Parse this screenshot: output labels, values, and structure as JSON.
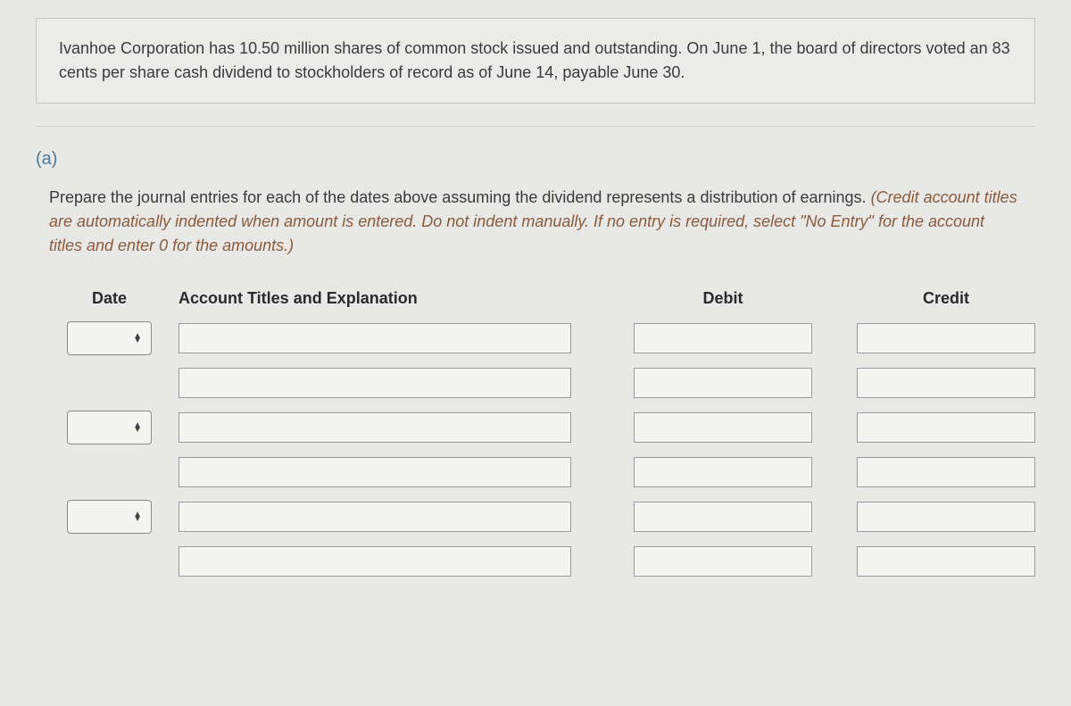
{
  "problem": {
    "text": "Ivanhoe Corporation has 10.50 million shares of common stock issued and outstanding. On June 1, the board of directors voted an 83 cents per share cash dividend to stockholders of record as of June 14, payable June 30."
  },
  "part": {
    "label": "(a)"
  },
  "instructions": {
    "main": "Prepare the journal entries for each of the dates above assuming the dividend represents a distribution of earnings. ",
    "note": "(Credit account titles are automatically indented when amount is entered. Do not indent manually. If no entry is required, select \"No Entry\" for the account titles and enter 0 for the amounts.)"
  },
  "table": {
    "headers": {
      "date": "Date",
      "account": "Account Titles and Explanation",
      "debit": "Debit",
      "credit": "Credit"
    },
    "entries": [
      {
        "date": "",
        "rows": [
          {
            "account": "",
            "debit": "",
            "credit": ""
          },
          {
            "account": "",
            "debit": "",
            "credit": ""
          }
        ]
      },
      {
        "date": "",
        "rows": [
          {
            "account": "",
            "debit": "",
            "credit": ""
          },
          {
            "account": "",
            "debit": "",
            "credit": ""
          }
        ]
      },
      {
        "date": "",
        "rows": [
          {
            "account": "",
            "debit": "",
            "credit": ""
          },
          {
            "account": "",
            "debit": "",
            "credit": ""
          }
        ]
      }
    ]
  },
  "styling": {
    "background_color": "#e8e8e6",
    "box_border_color": "#c5c5c3",
    "text_color": "#3a3a3a",
    "part_label_color": "#4a7a9a",
    "note_color": "#8a5a3a",
    "input_border_color": "#999",
    "input_background": "#f4f4f2",
    "font_size_body": 18,
    "font_size_header": 18
  }
}
